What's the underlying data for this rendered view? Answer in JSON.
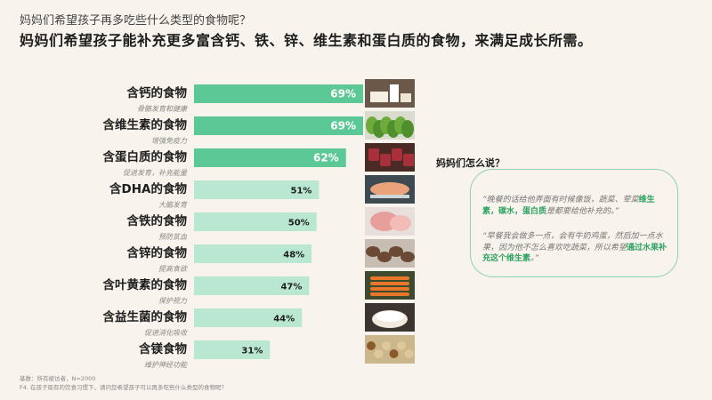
{
  "header": {
    "subtitle": "妈妈们希望孩子再多吃些什么类型的食物呢？",
    "title": "妈妈们希望孩子能补充更多富含钙、铁、锌、维生素和蛋白质的食物，来满足成长所需。"
  },
  "colors": {
    "top_bar": "#5cc896",
    "other_bar": "#b9e7d1",
    "accent": "#2da262"
  },
  "chart_data": {
    "type": "bar",
    "orientation": "horizontal",
    "categories": [
      "含钙的食物",
      "含维生素的食物",
      "含蛋白质的食物",
      "含DHA的食物",
      "含铁的食物",
      "含锌的食物",
      "含叶黄素的食物",
      "含益生菌的食物",
      "含镁食物"
    ],
    "subcategories": [
      "骨骼发育和健康",
      "增强免疫力",
      "促进发育，补充能量",
      "大脑发育",
      "预防贫血",
      "提高食欲",
      "保护视力",
      "促进消化吸收",
      "维护神经功能"
    ],
    "values": [
      69,
      69,
      62,
      51,
      50,
      48,
      47,
      44,
      31
    ],
    "value_labels": [
      "69%",
      "69%",
      "62%",
      "51%",
      "50%",
      "48%",
      "47%",
      "44%",
      "31%"
    ],
    "highlight_count": 3
  },
  "food_icons": [
    "tofu-milk-icon",
    "greens-icon",
    "meat-icon",
    "fish-icon",
    "pork-icon",
    "mushroom-icon",
    "carrot-icon",
    "yogurt-icon",
    "nuts-icon"
  ],
  "quote_panel": {
    "heading": "妈妈们怎么说？",
    "q1": {
      "p1": "“晚餐的话给他弄面有时候像饭，蔬菜、荤菜",
      "hl": "维生素，碳水，蛋白质",
      "p2": "是都要给他补充的。”"
    },
    "q2": {
      "p1": "“早餐我会做多一点，会有牛奶鸡蛋，然后加一点水果，因为他不怎么喜欢吃蔬菜，所以希望",
      "hl": "通过水果补充这个维生素",
      "p2": "。”"
    }
  },
  "footnote": {
    "base": "基数：所有被访者，N=2000",
    "question": "F4. 在孩子现有的饮食习惯下，请问您希望孩子可以再多吃些什么类型的食物呢？"
  }
}
